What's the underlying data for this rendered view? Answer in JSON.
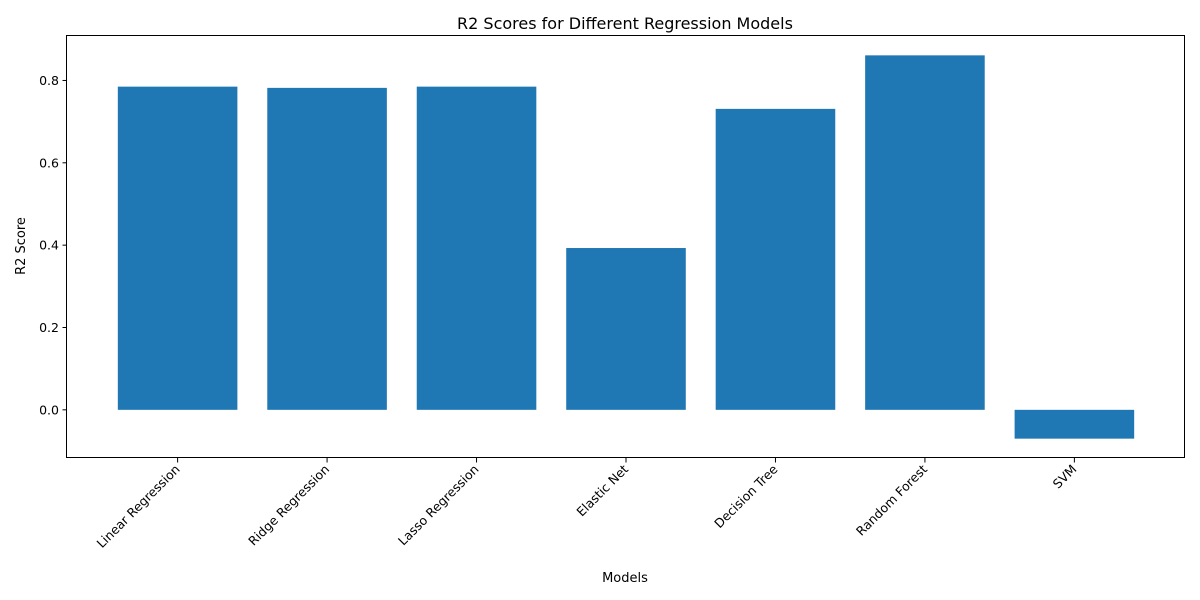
{
  "chart_data": {
    "type": "bar",
    "title": "R2 Scores for Different Regression Models",
    "xlabel": "Models",
    "ylabel": "R2 Score",
    "categories": [
      "Linear Regression",
      "Ridge Regression",
      "Lasso Regression",
      "Elastic Net",
      "Decision Tree",
      "Random Forest",
      "SVM"
    ],
    "values": [
      0.785,
      0.782,
      0.785,
      0.393,
      0.731,
      0.861,
      -0.07
    ],
    "ylim": [
      -0.117,
      0.908
    ],
    "yticks": [
      0.0,
      0.2,
      0.4,
      0.6,
      0.8
    ],
    "ytick_labels": [
      "0.0",
      "0.2",
      "0.4",
      "0.6",
      "0.8"
    ],
    "bar_color": "#1f77b4",
    "grid": false,
    "legend": "none"
  }
}
